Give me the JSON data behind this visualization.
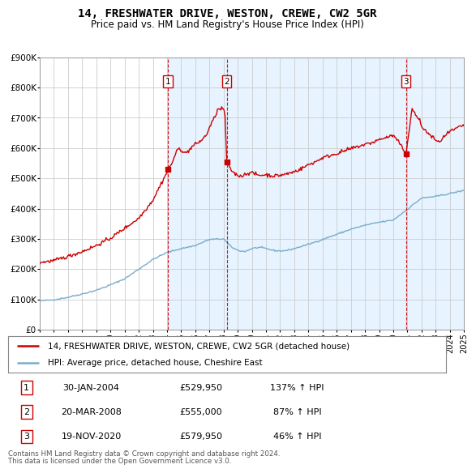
{
  "title": "14, FRESHWATER DRIVE, WESTON, CREWE, CW2 5GR",
  "subtitle": "Price paid vs. HM Land Registry's House Price Index (HPI)",
  "legend_line1": "14, FRESHWATER DRIVE, WESTON, CREWE, CW2 5GR (detached house)",
  "legend_line2": "HPI: Average price, detached house, Cheshire East",
  "transactions": [
    {
      "num": 1,
      "date": "30-JAN-2004",
      "price": "£529,950",
      "pct": "137% ↑ HPI",
      "x_year": 2004.08,
      "y_val": 529950
    },
    {
      "num": 2,
      "date": "20-MAR-2008",
      "price": "£555,000",
      "pct": "87% ↑ HPI",
      "x_year": 2008.22,
      "y_val": 555000
    },
    {
      "num": 3,
      "date": "19-NOV-2020",
      "price": "£579,950",
      "pct": "46% ↑ HPI",
      "x_year": 2020.89,
      "y_val": 579950
    }
  ],
  "footnote1": "Contains HM Land Registry data © Crown copyright and database right 2024.",
  "footnote2": "This data is licensed under the Open Government Licence v3.0.",
  "ylim": [
    0,
    900000
  ],
  "yticks": [
    0,
    100000,
    200000,
    300000,
    400000,
    500000,
    600000,
    700000,
    800000,
    900000
  ],
  "ytick_labels": [
    "£0",
    "£100K",
    "£200K",
    "£300K",
    "£400K",
    "£500K",
    "£600K",
    "£700K",
    "£800K",
    "£900K"
  ],
  "red_color": "#cc0000",
  "blue_color": "#7aaccc",
  "grid_color": "#cccccc",
  "shade_color": "#ddeeff",
  "xmin": 1995,
  "xmax": 2025,
  "xtick_years": [
    1995,
    1996,
    1997,
    1998,
    1999,
    2000,
    2001,
    2002,
    2003,
    2004,
    2005,
    2006,
    2007,
    2008,
    2009,
    2010,
    2011,
    2012,
    2013,
    2014,
    2015,
    2016,
    2017,
    2018,
    2019,
    2020,
    2021,
    2022,
    2023,
    2024,
    2025
  ],
  "hpi_anchors": {
    "1995": 95000,
    "1996": 99000,
    "1997": 107000,
    "1998": 118000,
    "1999": 130000,
    "2000": 148000,
    "2001": 168000,
    "2002": 200000,
    "2003": 232000,
    "2004": 255000,
    "2005": 268000,
    "2006": 278000,
    "2007": 298000,
    "2008": 300000,
    "2008.5": 275000,
    "2009": 262000,
    "2009.5": 258000,
    "2010": 268000,
    "2010.5": 272000,
    "2011": 268000,
    "2011.5": 262000,
    "2012": 260000,
    "2012.5": 262000,
    "2013": 268000,
    "2014": 282000,
    "2015": 298000,
    "2016": 315000,
    "2017": 332000,
    "2018": 345000,
    "2019": 355000,
    "2020": 362000,
    "2021": 398000,
    "2022": 435000,
    "2023": 440000,
    "2024": 450000,
    "2025": 460000
  },
  "red_anchors": {
    "1995": 222000,
    "1996": 228000,
    "1997": 242000,
    "1998": 258000,
    "1999": 278000,
    "2000": 302000,
    "2001": 335000,
    "2002": 368000,
    "2003": 428000,
    "2003.5": 475000,
    "2004.0": 520000,
    "2004.08": 529950,
    "2004.3": 545000,
    "2004.6": 580000,
    "2004.8": 598000,
    "2005.0": 595000,
    "2005.3": 582000,
    "2005.6": 595000,
    "2005.9": 610000,
    "2006.2": 618000,
    "2006.5": 628000,
    "2006.8": 645000,
    "2007.0": 668000,
    "2007.3": 695000,
    "2007.6": 728000,
    "2008.0": 730000,
    "2008.1": 710000,
    "2008.22": 555000,
    "2008.4": 535000,
    "2008.6": 525000,
    "2008.8": 515000,
    "2009.0": 510000,
    "2009.3": 508000,
    "2009.6": 515000,
    "2009.9": 520000,
    "2010.0": 518000,
    "2010.5": 510000,
    "2011.0": 512000,
    "2011.5": 508000,
    "2012.0": 510000,
    "2012.5": 515000,
    "2013.0": 522000,
    "2013.5": 532000,
    "2014.0": 545000,
    "2014.5": 555000,
    "2015.0": 568000,
    "2015.5": 575000,
    "2016.0": 582000,
    "2016.5": 590000,
    "2017.0": 598000,
    "2017.5": 605000,
    "2018.0": 612000,
    "2018.5": 618000,
    "2019.0": 628000,
    "2019.5": 635000,
    "2020.0": 642000,
    "2020.5": 612000,
    "2020.89": 579950,
    "2021.0": 620000,
    "2021.2": 680000,
    "2021.3": 730000,
    "2021.5": 718000,
    "2021.7": 700000,
    "2021.9": 688000,
    "2022.0": 672000,
    "2022.3": 655000,
    "2022.5": 648000,
    "2022.7": 638000,
    "2022.9": 632000,
    "2023.0": 625000,
    "2023.2": 618000,
    "2023.4": 628000,
    "2023.6": 638000,
    "2023.8": 645000,
    "2024.0": 655000,
    "2024.3": 660000,
    "2024.6": 668000,
    "2025.0": 675000
  }
}
